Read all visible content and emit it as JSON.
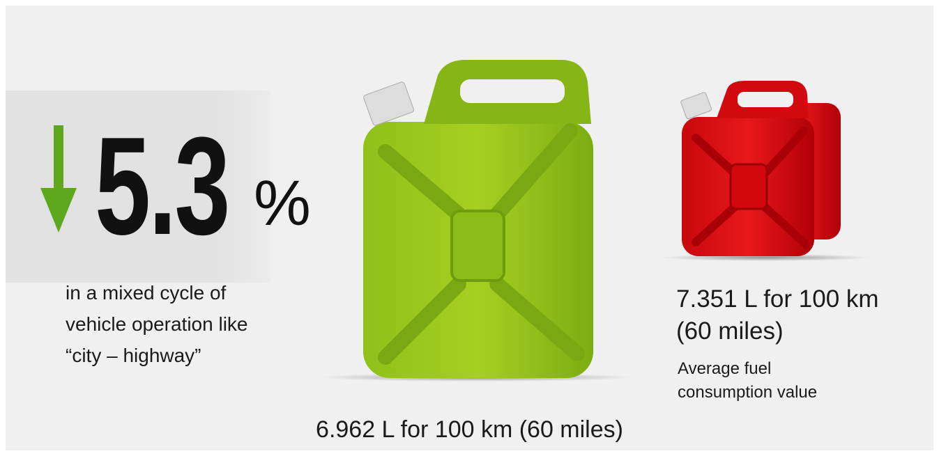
{
  "headline": {
    "value": "5.3",
    "unit": "%"
  },
  "description": [
    "in a mixed cycle of",
    "vehicle operation like",
    "“city – highway”"
  ],
  "new_consumption": "6.962 L for 100 km (60 miles)",
  "average": {
    "value_lines": [
      "7.351 L for 100 km",
      "(60 miles)"
    ],
    "caption_lines": [
      "Average fuel",
      "consumption value"
    ]
  }
}
